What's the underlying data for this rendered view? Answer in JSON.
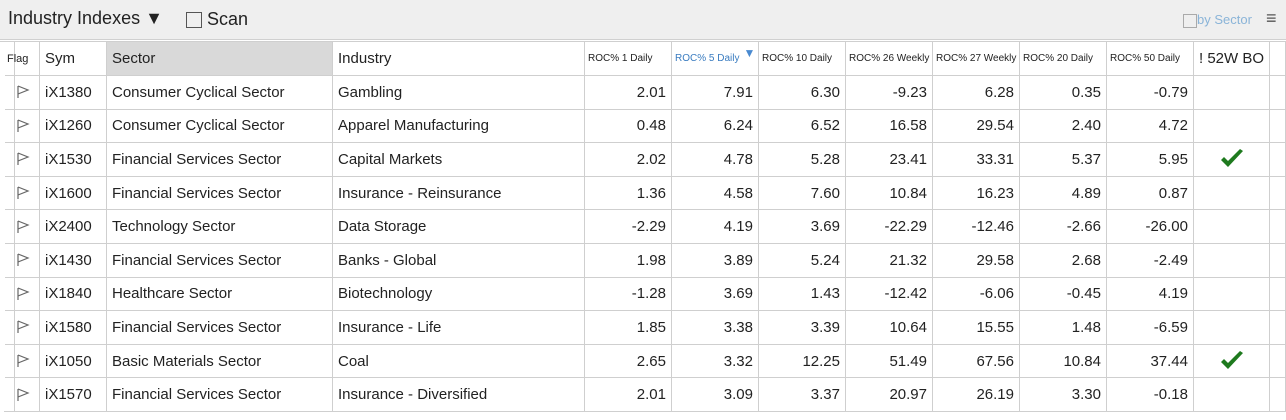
{
  "header": {
    "title": "Industry Indexes",
    "scan": "Scan",
    "by_sector": "by Sector"
  },
  "table": {
    "columns": [
      "Flag",
      "Sym",
      "Sector",
      "Industry",
      "ROC% 1 Daily",
      "ROC% 5 Daily",
      "ROC% 10 Daily",
      "ROC% 26 Weekly",
      "ROC% 27 Weekly",
      "ROC% 20 Daily",
      "ROC% 50 Daily",
      "! 52W BO"
    ],
    "sort_column": 5,
    "rows": [
      [
        "iX1380",
        "Consumer Cyclical Sector",
        "Gambling",
        "2.01",
        "7.91",
        "6.30",
        "-9.23",
        "6.28",
        "0.35",
        "-0.79",
        false
      ],
      [
        "iX1260",
        "Consumer Cyclical Sector",
        "Apparel Manufacturing",
        "0.48",
        "6.24",
        "6.52",
        "16.58",
        "29.54",
        "2.40",
        "4.72",
        false
      ],
      [
        "iX1530",
        "Financial Services Sector",
        "Capital Markets",
        "2.02",
        "4.78",
        "5.28",
        "23.41",
        "33.31",
        "5.37",
        "5.95",
        true
      ],
      [
        "iX1600",
        "Financial Services Sector",
        "Insurance - Reinsurance",
        "1.36",
        "4.58",
        "7.60",
        "10.84",
        "16.23",
        "4.89",
        "0.87",
        false
      ],
      [
        "iX2400",
        "Technology Sector",
        "Data Storage",
        "-2.29",
        "4.19",
        "3.69",
        "-22.29",
        "-12.46",
        "-2.66",
        "-26.00",
        false
      ],
      [
        "iX1430",
        "Financial Services Sector",
        "Banks - Global",
        "1.98",
        "3.89",
        "5.24",
        "21.32",
        "29.58",
        "2.68",
        "-2.49",
        false
      ],
      [
        "iX1840",
        "Healthcare Sector",
        "Biotechnology",
        "-1.28",
        "3.69",
        "1.43",
        "-12.42",
        "-6.06",
        "-0.45",
        "4.19",
        false
      ],
      [
        "iX1580",
        "Financial Services Sector",
        "Insurance - Life",
        "1.85",
        "3.38",
        "3.39",
        "10.64",
        "15.55",
        "1.48",
        "-6.59",
        false
      ],
      [
        "iX1050",
        "Basic Materials Sector",
        "Coal",
        "2.65",
        "3.32",
        "12.25",
        "51.49",
        "67.56",
        "10.84",
        "37.44",
        true
      ],
      [
        "iX1570",
        "Financial Services Sector",
        "Insurance - Diversified",
        "2.01",
        "3.09",
        "3.37",
        "20.97",
        "26.19",
        "3.30",
        "-0.18",
        false
      ]
    ]
  }
}
